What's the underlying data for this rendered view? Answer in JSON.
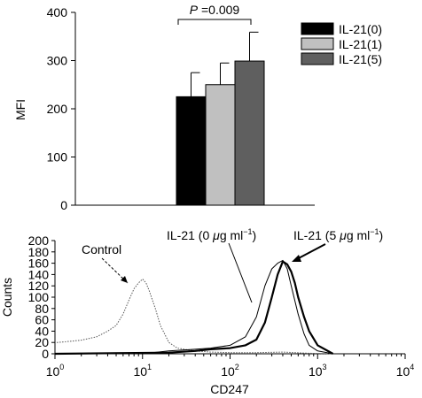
{
  "chart_data": [
    {
      "type": "bar",
      "title": "",
      "xlabel": "",
      "ylabel": "MFI",
      "ylim": [
        0,
        400
      ],
      "yticks": [
        "0",
        "100",
        "200",
        "300",
        "400"
      ],
      "series": [
        {
          "name": "IL-21(0)",
          "value": 225,
          "error": 50,
          "color": "#000000"
        },
        {
          "name": "IL-21(1)",
          "value": 250,
          "error": 45,
          "color": "#c0c0c0"
        },
        {
          "name": "IL-21(5)",
          "value": 299,
          "error": 60,
          "color": "#5f5f5f"
        }
      ],
      "annotation": {
        "p_letter": "P",
        "p_rest": " =0.009"
      },
      "legend_position": "top-right",
      "grid": false
    },
    {
      "type": "line",
      "title": "",
      "xlabel": "CD247",
      "ylabel": "Counts",
      "x_scale": "log",
      "xlim": [
        1,
        10000
      ],
      "ylim": [
        0,
        200
      ],
      "yticks": [
        "0",
        "20",
        "40",
        "60",
        "80",
        "100",
        "120",
        "140",
        "160",
        "180",
        "200"
      ],
      "xticks": [
        {
          "base": "10",
          "exp": "0"
        },
        {
          "base": "10",
          "exp": "1"
        },
        {
          "base": "10",
          "exp": "2"
        },
        {
          "base": "10",
          "exp": "3"
        },
        {
          "base": "10",
          "exp": "4"
        }
      ],
      "series": [
        {
          "name": "Control",
          "style": "dotted",
          "x": [
            1.05,
            1.5,
            2,
            3,
            4,
            5,
            6,
            7,
            8,
            9,
            10,
            11,
            12,
            14,
            16,
            20,
            25,
            30,
            40,
            60,
            100,
            200,
            400,
            800,
            1500
          ],
          "y": [
            20,
            22,
            24,
            30,
            40,
            50,
            70,
            95,
            115,
            125,
            132,
            125,
            110,
            80,
            50,
            20,
            10,
            8,
            5,
            3,
            2,
            2,
            3,
            1,
            0
          ]
        },
        {
          "name": "IL-21 (0 μg ml−1)",
          "style": "thin",
          "x": [
            1,
            10,
            20,
            40,
            60,
            100,
            150,
            200,
            250,
            300,
            350,
            400,
            450,
            500,
            600,
            700,
            800,
            1000,
            1500
          ],
          "y": [
            0,
            0,
            5,
            8,
            10,
            15,
            30,
            65,
            120,
            150,
            160,
            165,
            150,
            120,
            70,
            35,
            15,
            5,
            0
          ]
        },
        {
          "name": "IL-21 (5 μg ml−1)",
          "style": "thick",
          "x": [
            1,
            20,
            40,
            60,
            100,
            150,
            200,
            250,
            300,
            350,
            400,
            450,
            500,
            550,
            600,
            700,
            800,
            1000,
            1500
          ],
          "y": [
            0,
            2,
            5,
            8,
            10,
            15,
            25,
            55,
            100,
            140,
            163,
            158,
            145,
            125,
            100,
            65,
            40,
            15,
            0
          ]
        }
      ],
      "labels": {
        "control": "Control",
        "il21_0_pre": "IL-21 (0 ",
        "il21_5_pre": "IL-21 (5 ",
        "mu": "μ",
        "unit": "g ml",
        "exp": "−1",
        "close": ")"
      },
      "grid": false
    }
  ]
}
